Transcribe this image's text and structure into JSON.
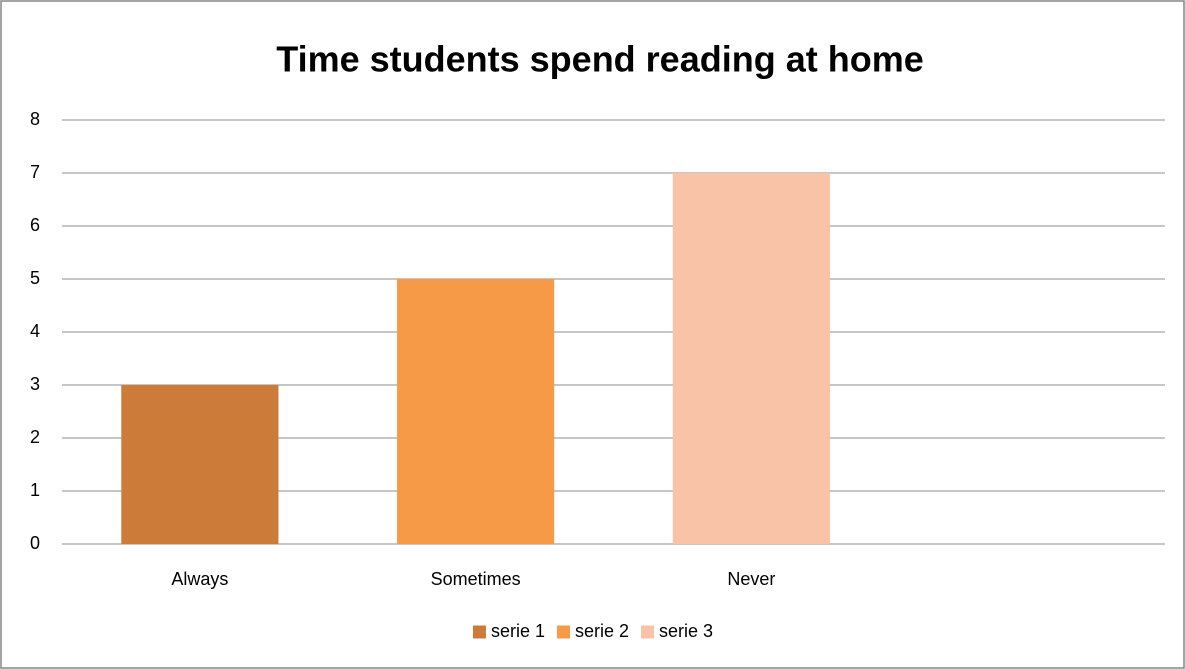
{
  "chart_data": {
    "type": "bar",
    "title": "Time students spend reading at home",
    "categories": [
      "Always",
      "Sometimes",
      "Never",
      null
    ],
    "series": [
      {
        "name": "serie 1",
        "color": "#cc7b38",
        "values": [
          3,
          null,
          null,
          null
        ]
      },
      {
        "name": "serie 2",
        "color": "#f79a47",
        "values": [
          null,
          5,
          null,
          null
        ]
      },
      {
        "name": "serie 3",
        "color": "#f9c3a8",
        "values": [
          null,
          null,
          7,
          null
        ]
      }
    ],
    "ylim": [
      0,
      8
    ],
    "yticks": [
      0,
      1,
      2,
      3,
      4,
      5,
      6,
      7,
      8
    ],
    "grid": true,
    "legend": "bottom"
  }
}
